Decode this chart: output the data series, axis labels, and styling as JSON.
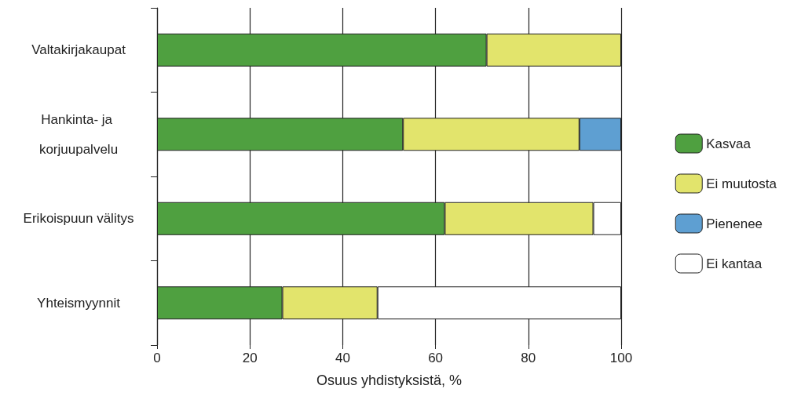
{
  "chart_data": {
    "type": "bar",
    "orientation": "horizontal",
    "stacked": true,
    "categories": [
      "Valtakirjakaupat",
      "Hankinta- ja korjuupalvelu",
      "Erikoispuun välitys",
      "Yhteismyynnit"
    ],
    "series": [
      {
        "name": "Kasvaa",
        "color": "#4fa040",
        "values": [
          71,
          53,
          62,
          27
        ]
      },
      {
        "name": "Ei muutosta",
        "color": "#e2e46c",
        "values": [
          29,
          38,
          32,
          20.5
        ]
      },
      {
        "name": "Pienenee",
        "color": "#5e9fd2",
        "values": [
          null,
          9,
          null,
          null
        ]
      },
      {
        "name": "Ei kantaa",
        "color": "#ffffff",
        "values": [
          null,
          null,
          6,
          52.5
        ]
      }
    ],
    "xlabel": "Osuus yhdistyksistä, %",
    "xlim": [
      0,
      100
    ],
    "xticks": [
      0,
      20,
      40,
      60,
      80,
      100
    ],
    "grid": "x",
    "legend": "right"
  }
}
